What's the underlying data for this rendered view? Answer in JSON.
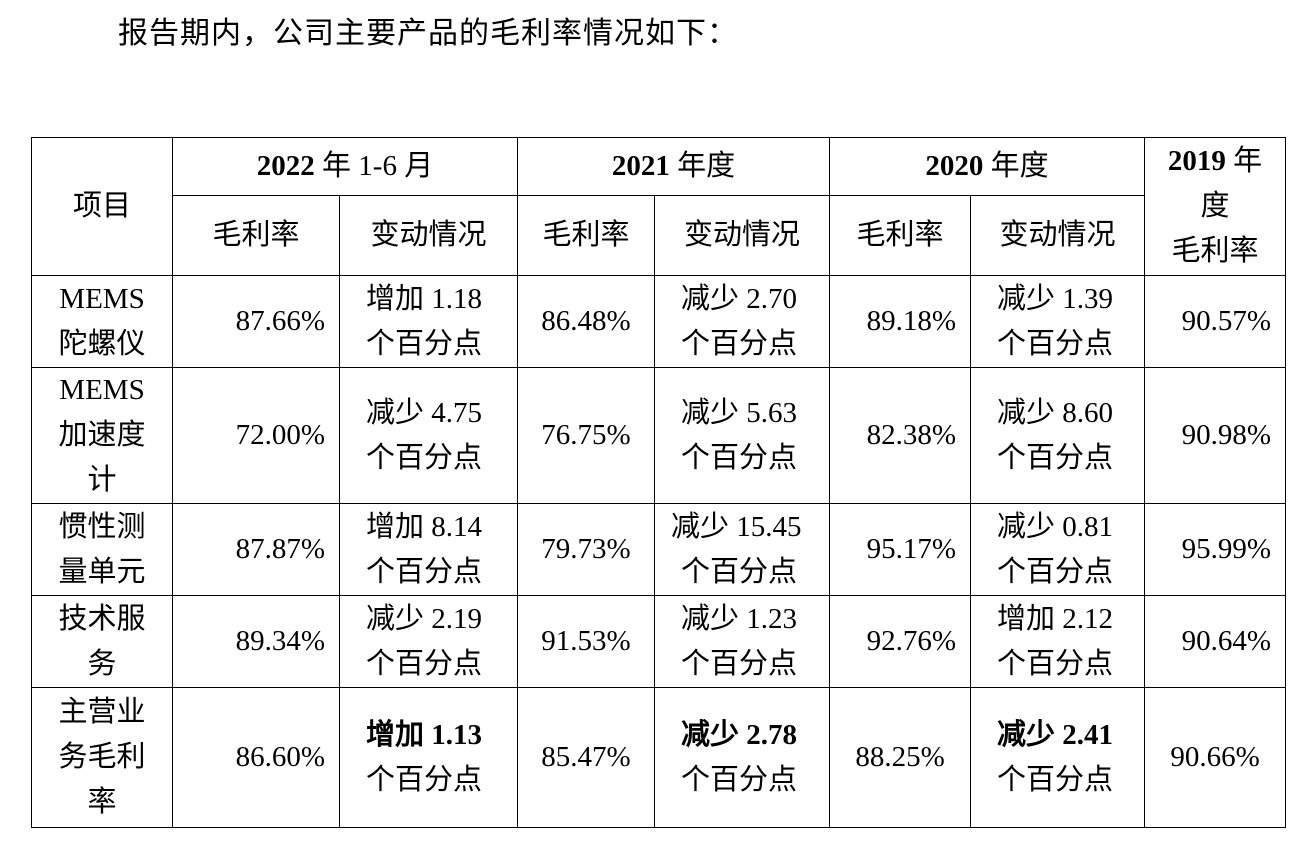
{
  "intro_text": "报告期内，公司主要产品的毛利率情况如下：",
  "table": {
    "item_header": "项目",
    "periods": [
      {
        "year": "2022",
        "suffix": " 年 1-6 月"
      },
      {
        "year": "2021",
        "suffix": " 年度"
      },
      {
        "year": "2020",
        "suffix": " 年度"
      }
    ],
    "last_period": {
      "year": "2019",
      "line1_suffix": " 年",
      "line2": "度",
      "line3": "毛利率"
    },
    "sub_gross": "毛利率",
    "sub_change": "变动情况",
    "rows": [
      {
        "name_lines": [
          "MEMS",
          "陀螺仪"
        ],
        "v2022": "87.66%",
        "c2022": [
          "增加 1.18",
          "个百分点"
        ],
        "v2021": "86.48%",
        "c2021": [
          "减少 2.70",
          "个百分点"
        ],
        "v2020": "89.18%",
        "c2020": [
          "减少 1.39",
          "个百分点"
        ],
        "v2019": "90.57%"
      },
      {
        "name_lines": [
          "MEMS",
          "加速度",
          "计"
        ],
        "v2022": "72.00%",
        "c2022": [
          "减少 4.75",
          "个百分点"
        ],
        "v2021": "76.75%",
        "c2021": [
          "减少 5.63",
          "个百分点"
        ],
        "v2020": "82.38%",
        "c2020": [
          "减少 8.60",
          "个百分点"
        ],
        "v2019": "90.98%"
      },
      {
        "name_lines": [
          "惯性测",
          "量单元"
        ],
        "v2022": "87.87%",
        "c2022": [
          "增加 8.14",
          "个百分点"
        ],
        "v2021": "79.73%",
        "c2021": [
          "减少 15.45",
          "个百分点"
        ],
        "v2020": "95.17%",
        "c2020": [
          "减少 0.81",
          "个百分点"
        ],
        "v2019": "95.99%"
      },
      {
        "name_lines": [
          "技术服",
          "务"
        ],
        "v2022": "89.34%",
        "c2022": [
          "减少 2.19",
          "个百分点"
        ],
        "v2021": "91.53%",
        "c2021": [
          "减少 1.23",
          "个百分点"
        ],
        "v2020": "92.76%",
        "c2020": [
          "增加 2.12",
          "个百分点"
        ],
        "v2019": "90.64%"
      },
      {
        "name_lines": [
          "主营业",
          "务毛利",
          "率"
        ],
        "v2022": "86.60%",
        "c2022": [
          "增加 1.13",
          "个百分点"
        ],
        "v2021": "85.47%",
        "c2021": [
          "减少 2.78",
          "个百分点"
        ],
        "v2020": "88.25%",
        "c2020": [
          "减少 2.41",
          "个百分点"
        ],
        "v2019": "90.66%"
      }
    ]
  }
}
